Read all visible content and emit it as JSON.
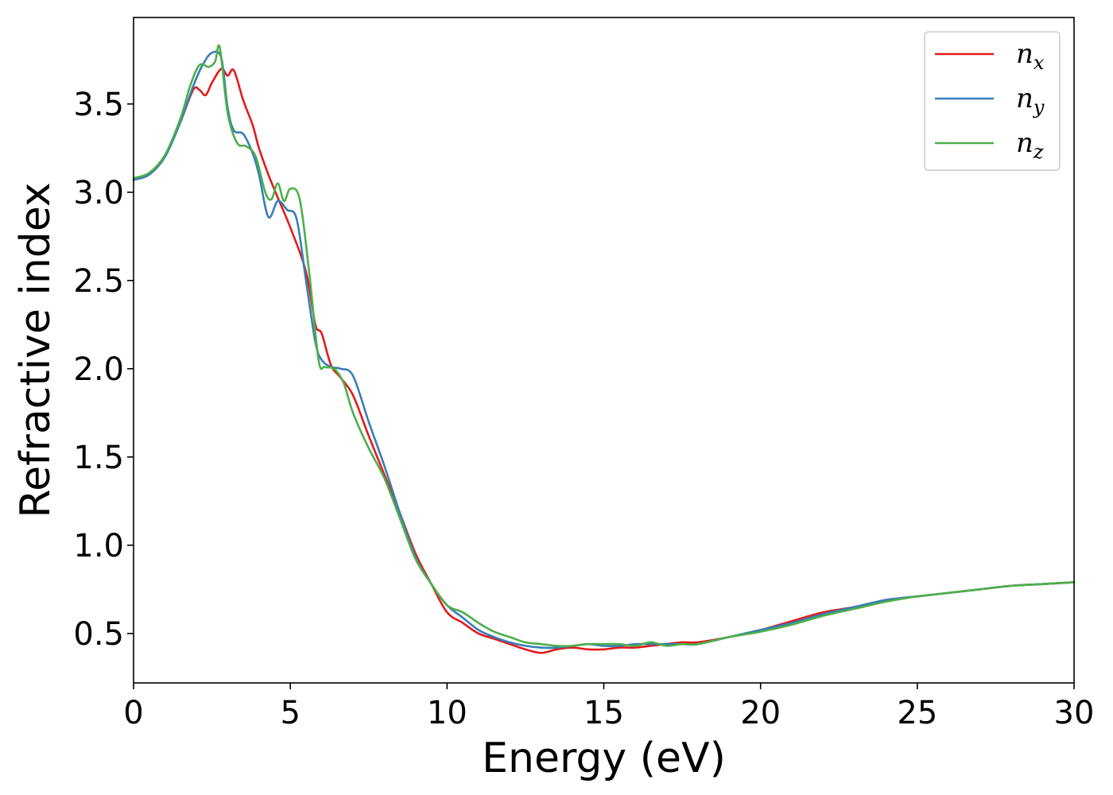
{
  "chart_data": {
    "type": "line",
    "xlabel": "Energy (eV)",
    "ylabel": "Refractive index",
    "xlim": [
      0,
      30
    ],
    "ylim": [
      0.22,
      3.99
    ],
    "xticks": [
      0,
      5,
      10,
      15,
      20,
      25,
      30
    ],
    "yticks": [
      0.5,
      1.0,
      1.5,
      2.0,
      2.5,
      3.0,
      3.5
    ],
    "xtick_labels": [
      "0",
      "5",
      "10",
      "15",
      "20",
      "25",
      "30"
    ],
    "ytick_labels": [
      "0.5",
      "1.0",
      "1.5",
      "2.0",
      "2.5",
      "3.0",
      "3.5"
    ],
    "grid": false,
    "legend_position": "top-right",
    "series": [
      {
        "name": "n_x",
        "label_base": "n",
        "label_sub": "x",
        "color": "#e41a1c",
        "x": [
          0,
          0.5,
          1.0,
          1.5,
          1.9,
          2.1,
          2.3,
          2.5,
          2.8,
          3.0,
          3.2,
          3.5,
          3.8,
          4.0,
          4.3,
          4.6,
          5.0,
          5.5,
          5.8,
          6.0,
          6.3,
          6.6,
          7.0,
          7.5,
          8.0,
          8.5,
          9.0,
          9.5,
          10.0,
          10.5,
          11.0,
          11.5,
          12.0,
          12.5,
          13.0,
          13.5,
          14.0,
          14.5,
          15.0,
          15.5,
          16.0,
          16.5,
          17.0,
          17.5,
          18.0,
          19.0,
          20.0,
          21.0,
          22.0,
          23.0,
          24.0,
          25.0,
          26.0,
          27.0,
          28.0,
          29.0,
          30.0
        ],
        "y": [
          3.07,
          3.1,
          3.2,
          3.4,
          3.58,
          3.58,
          3.55,
          3.62,
          3.7,
          3.66,
          3.69,
          3.52,
          3.38,
          3.25,
          3.1,
          2.97,
          2.8,
          2.55,
          2.25,
          2.2,
          2.02,
          1.95,
          1.85,
          1.62,
          1.4,
          1.18,
          0.95,
          0.78,
          0.62,
          0.56,
          0.5,
          0.47,
          0.44,
          0.41,
          0.39,
          0.41,
          0.42,
          0.41,
          0.41,
          0.42,
          0.42,
          0.43,
          0.44,
          0.45,
          0.45,
          0.48,
          0.52,
          0.57,
          0.62,
          0.65,
          0.69,
          0.71,
          0.73,
          0.75,
          0.77,
          0.78,
          0.79
        ]
      },
      {
        "name": "n_y",
        "label_base": "n",
        "label_sub": "y",
        "color": "#377eb8",
        "x": [
          0,
          0.5,
          1.0,
          1.5,
          1.9,
          2.2,
          2.5,
          2.8,
          3.0,
          3.2,
          3.5,
          3.8,
          4.0,
          4.3,
          4.6,
          4.9,
          5.2,
          5.5,
          5.8,
          6.0,
          6.3,
          6.6,
          7.0,
          7.5,
          8.0,
          8.5,
          9.0,
          9.5,
          10.0,
          10.5,
          11.0,
          11.5,
          12.0,
          12.5,
          13.0,
          13.5,
          14.0,
          14.5,
          15.0,
          15.5,
          16.0,
          16.5,
          17.0,
          17.5,
          18.0,
          19.0,
          20.0,
          21.0,
          22.0,
          23.0,
          24.0,
          25.0,
          26.0,
          27.0,
          28.0,
          29.0,
          30.0
        ],
        "y": [
          3.07,
          3.1,
          3.2,
          3.4,
          3.6,
          3.72,
          3.79,
          3.76,
          3.48,
          3.35,
          3.33,
          3.22,
          3.1,
          2.86,
          2.95,
          2.9,
          2.85,
          2.5,
          2.15,
          2.05,
          2.01,
          2.0,
          1.96,
          1.7,
          1.45,
          1.18,
          0.93,
          0.78,
          0.66,
          0.59,
          0.52,
          0.48,
          0.45,
          0.43,
          0.42,
          0.42,
          0.43,
          0.44,
          0.43,
          0.43,
          0.44,
          0.44,
          0.44,
          0.44,
          0.44,
          0.48,
          0.52,
          0.56,
          0.61,
          0.65,
          0.69,
          0.71,
          0.73,
          0.75,
          0.77,
          0.78,
          0.79
        ]
      },
      {
        "name": "n_z",
        "label_base": "n",
        "label_sub": "z",
        "color": "#4daf4a",
        "x": [
          0,
          0.5,
          1.0,
          1.5,
          1.8,
          2.1,
          2.4,
          2.6,
          2.75,
          3.0,
          3.3,
          3.6,
          3.9,
          4.2,
          4.4,
          4.6,
          4.8,
          5.0,
          5.3,
          5.6,
          5.9,
          6.1,
          6.4,
          6.7,
          7.0,
          7.5,
          8.0,
          8.5,
          9.0,
          9.5,
          10.0,
          10.5,
          11.0,
          11.5,
          12.0,
          12.5,
          13.0,
          13.5,
          14.0,
          14.5,
          15.0,
          15.5,
          16.0,
          16.5,
          17.0,
          17.5,
          18.0,
          19.0,
          20.0,
          21.0,
          22.0,
          23.0,
          24.0,
          25.0,
          26.0,
          27.0,
          28.0,
          29.0,
          30.0
        ],
        "y": [
          3.08,
          3.11,
          3.21,
          3.42,
          3.6,
          3.72,
          3.71,
          3.74,
          3.82,
          3.45,
          3.28,
          3.26,
          3.2,
          3.0,
          2.96,
          3.05,
          2.95,
          3.02,
          2.96,
          2.55,
          2.05,
          2.01,
          2.0,
          1.92,
          1.75,
          1.55,
          1.38,
          1.15,
          0.92,
          0.78,
          0.66,
          0.62,
          0.56,
          0.51,
          0.48,
          0.45,
          0.44,
          0.43,
          0.43,
          0.44,
          0.44,
          0.44,
          0.43,
          0.45,
          0.43,
          0.44,
          0.44,
          0.48,
          0.51,
          0.55,
          0.6,
          0.64,
          0.68,
          0.71,
          0.73,
          0.75,
          0.77,
          0.78,
          0.79
        ]
      }
    ]
  }
}
